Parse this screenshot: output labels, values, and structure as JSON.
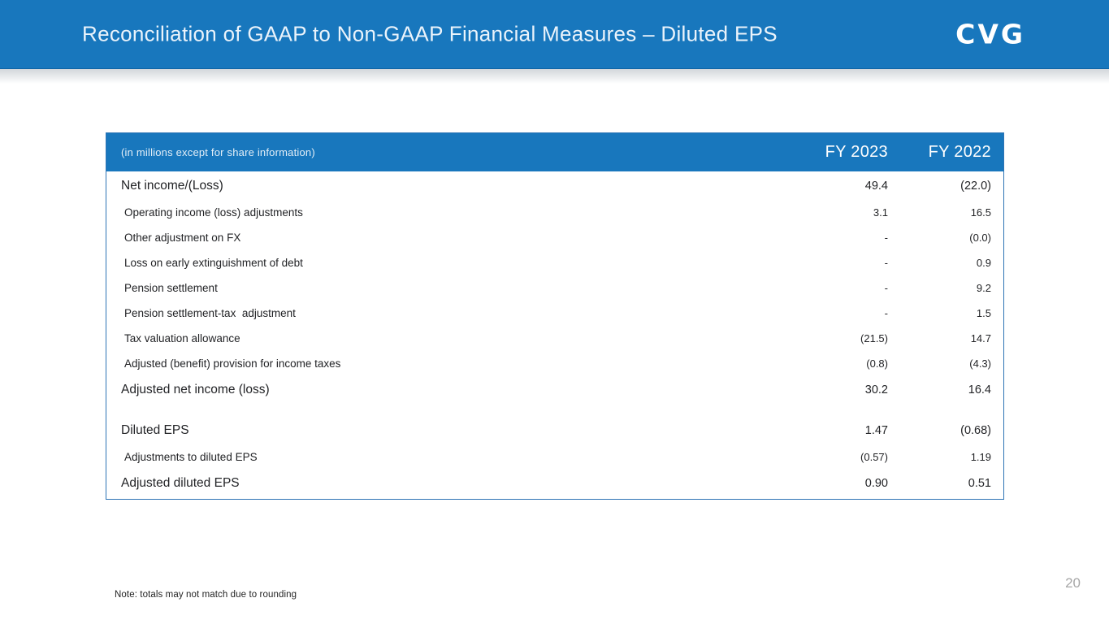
{
  "header": {
    "title": "Reconciliation of GAAP to Non-GAAP Financial Measures – Diluted EPS",
    "logo_text": "CVG"
  },
  "table": {
    "caption": "(in millions except for share information)",
    "columns": [
      "FY 2023",
      "FY 2022"
    ],
    "rows": [
      {
        "label": "Net income/(Loss)",
        "fy2023": "49.4",
        "fy2022": "(22.0)",
        "style": "major"
      },
      {
        "label": "Operating income (loss) adjustments",
        "fy2023": "3.1",
        "fy2022": "16.5",
        "style": "minor"
      },
      {
        "label": "Other adjustment on FX",
        "fy2023": "-",
        "fy2022": "(0.0)",
        "style": "minor"
      },
      {
        "label": "Loss on early extinguishment of debt",
        "fy2023": "-",
        "fy2022": "0.9",
        "style": "minor"
      },
      {
        "label": "Pension settlement",
        "fy2023": "-",
        "fy2022": "9.2",
        "style": "minor"
      },
      {
        "label": "Pension settlement-tax  adjustment",
        "fy2023": "-",
        "fy2022": "1.5",
        "style": "minor"
      },
      {
        "label": "Tax valuation allowance",
        "fy2023": "(21.5)",
        "fy2022": "14.7",
        "style": "minor"
      },
      {
        "label": "Adjusted (benefit) provision for income taxes",
        "fy2023": "(0.8)",
        "fy2022": "(4.3)",
        "style": "minor"
      },
      {
        "label": "Adjusted net income (loss)",
        "fy2023": "30.2",
        "fy2022": "16.4",
        "style": "major"
      },
      {
        "label": "",
        "fy2023": "",
        "fy2022": "",
        "style": "spacer"
      },
      {
        "label": "Diluted EPS",
        "fy2023": "1.47",
        "fy2022": "(0.68)",
        "style": "major"
      },
      {
        "label": "Adjustments to diluted EPS",
        "fy2023": "(0.57)",
        "fy2022": "1.19",
        "style": "minor"
      },
      {
        "label": "Adjusted diluted EPS",
        "fy2023": "0.90",
        "fy2022": "0.51",
        "style": "major"
      }
    ]
  },
  "footer": {
    "note": "Note: totals may not match due to rounding",
    "page_number": "20"
  },
  "colors": {
    "brand_blue": "#1877BD",
    "table_border": "#2E74B5",
    "page_number_gray": "#A7A7A7"
  }
}
